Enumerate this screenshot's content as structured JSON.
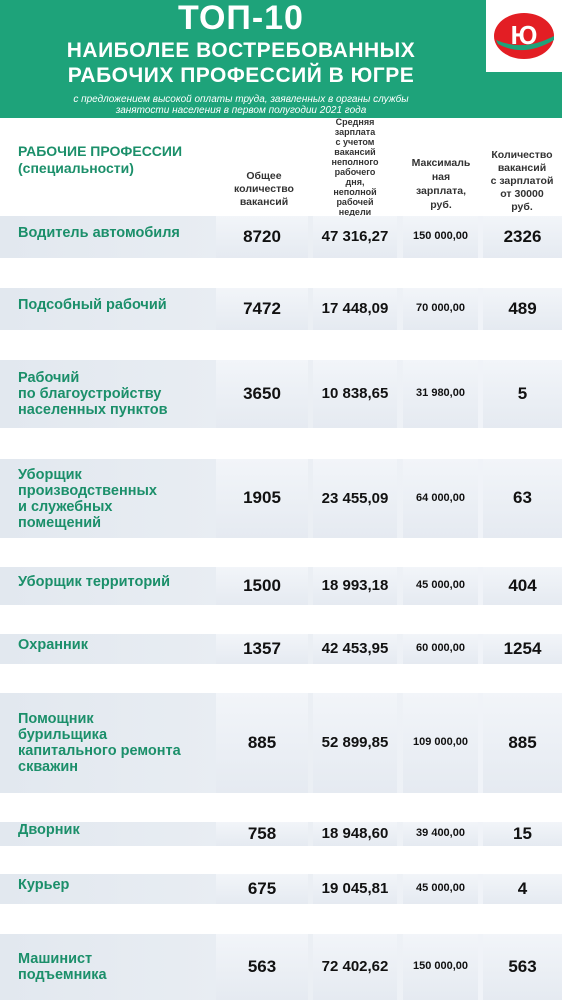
{
  "header": {
    "title": "ТОП-10",
    "line2": "НАИБОЛЕЕ ВОСТРЕБОВАННЫХ",
    "line3": "РАБОЧИХ ПРОФЕССИЙ В ЮГРЕ",
    "subtitle_1": "с предложением высокой оплаты труда, заявленных в органы службы",
    "subtitle_2": "занятости населения в первом полугодии 2021 года",
    "logo_text": "Ю",
    "accent": "#1ea37a",
    "logo_red": "#e31e24"
  },
  "columns": {
    "label": [
      "РАБОЧИЕ ПРОФЕССИИ",
      "(специальности)"
    ],
    "c1": [
      "Общее",
      "количество",
      "вакансий"
    ],
    "c2": [
      "Средняя",
      "зарплата",
      "с учетом",
      "вакансий",
      "неполного",
      "рабочего",
      "дня,",
      "неполной",
      "рабочей",
      "недели"
    ],
    "c3": [
      "Максималь",
      "ная",
      "зарплата,",
      "руб."
    ],
    "c4": [
      "Количество",
      "вакансий",
      "с зарплатой",
      "от 30000",
      "руб."
    ]
  },
  "rows": [
    {
      "label": [
        "Водитель автомобиля"
      ],
      "total": "8720",
      "avg": "47 316,27",
      "max": "150 000,00",
      "over": "2326"
    },
    {
      "label": [
        "Подсобный рабочий"
      ],
      "total": "7472",
      "avg": "17 448,09",
      "max": "70 000,00",
      "over": "489"
    },
    {
      "label": [
        "Рабочий",
        "по благоустройству",
        "населенных пунктов"
      ],
      "total": "3650",
      "avg": "10 838,65",
      "max": "31 980,00",
      "over": "5"
    },
    {
      "label": [
        "Уборщик",
        "производственных",
        "и служебных",
        "помещений"
      ],
      "total": "1905",
      "avg": "23 455,09",
      "max": "64 000,00",
      "over": "63"
    },
    {
      "label": [
        "Уборщик территорий"
      ],
      "total": "1500",
      "avg": "18 993,18",
      "max": "45 000,00",
      "over": "404"
    },
    {
      "label": [
        "Охранник"
      ],
      "total": "1357",
      "avg": "42 453,95",
      "max": "60 000,00",
      "over": "1254"
    },
    {
      "label": [
        "Помощник",
        "бурильщика",
        "капитального ремонта",
        "скважин"
      ],
      "total": "885",
      "avg": "52 899,85",
      "max": "109 000,00",
      "over": "885"
    },
    {
      "label": [
        "Дворник"
      ],
      "total": "758",
      "avg": "18 948,60",
      "max": "39 400,00",
      "over": "15"
    },
    {
      "label": [
        "Курьер"
      ],
      "total": "675",
      "avg": "19 045,81",
      "max": "45 000,00",
      "over": "4"
    },
    {
      "label": [
        "Машинист",
        "подъемника"
      ],
      "total": "563",
      "avg": "72 402,62",
      "max": "150 000,00",
      "over": "563"
    }
  ]
}
